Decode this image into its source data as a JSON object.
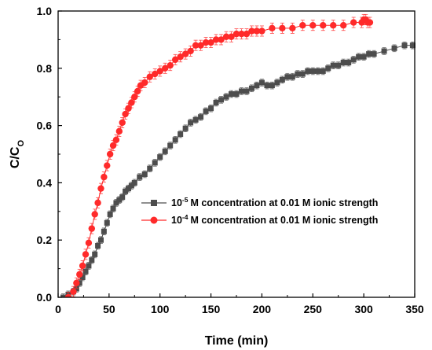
{
  "chart_data": {
    "type": "scatter",
    "xlabel": "Time (min)",
    "ylabel_main": "C/C",
    "ylabel_sub": "O",
    "xlim": [
      0,
      350
    ],
    "ylim": [
      0,
      1.0
    ],
    "xticks": [
      "0",
      "50",
      "100",
      "150",
      "200",
      "250",
      "300",
      "350"
    ],
    "yticks": [
      "0.0",
      "0.2",
      "0.4",
      "0.6",
      "0.8",
      "1.0"
    ],
    "grid": false,
    "legend_position": "center-right",
    "series": [
      {
        "base": "10",
        "exponent": "-5",
        "suffix": "M concentration at 0.01 M ionic strength",
        "color": "#4d4d4d",
        "marker": "square",
        "x": [
          5,
          10,
          15,
          18,
          21,
          24,
          27,
          30,
          33,
          36,
          39,
          42,
          45,
          48,
          51,
          54,
          57,
          60,
          63,
          66,
          69,
          72,
          75,
          80,
          85,
          90,
          95,
          100,
          105,
          110,
          115,
          120,
          125,
          130,
          135,
          140,
          145,
          150,
          155,
          160,
          165,
          170,
          175,
          180,
          185,
          190,
          195,
          200,
          205,
          210,
          215,
          220,
          225,
          230,
          235,
          240,
          245,
          250,
          255,
          260,
          265,
          270,
          275,
          280,
          285,
          290,
          295,
          300,
          305,
          310,
          320,
          330,
          340,
          348
        ],
        "y": [
          0.0,
          0.01,
          0.02,
          0.03,
          0.05,
          0.07,
          0.09,
          0.11,
          0.13,
          0.15,
          0.18,
          0.2,
          0.23,
          0.26,
          0.29,
          0.31,
          0.33,
          0.34,
          0.35,
          0.37,
          0.38,
          0.39,
          0.4,
          0.42,
          0.43,
          0.45,
          0.47,
          0.49,
          0.51,
          0.53,
          0.55,
          0.57,
          0.59,
          0.61,
          0.62,
          0.63,
          0.65,
          0.66,
          0.68,
          0.69,
          0.7,
          0.71,
          0.71,
          0.72,
          0.72,
          0.73,
          0.74,
          0.75,
          0.74,
          0.74,
          0.75,
          0.76,
          0.77,
          0.77,
          0.78,
          0.78,
          0.79,
          0.79,
          0.79,
          0.79,
          0.8,
          0.81,
          0.81,
          0.82,
          0.82,
          0.83,
          0.84,
          0.84,
          0.85,
          0.85,
          0.86,
          0.87,
          0.88,
          0.88
        ]
      },
      {
        "base": "10",
        "exponent": "-4",
        "suffix": "M concentration at 0.01 M ionic strength",
        "color": "#ff2a2a",
        "marker": "circle",
        "x": [
          10,
          15,
          18,
          21,
          24,
          27,
          30,
          33,
          36,
          39,
          42,
          45,
          48,
          51,
          54,
          57,
          60,
          63,
          66,
          69,
          72,
          75,
          78,
          81,
          85,
          90,
          95,
          100,
          105,
          110,
          115,
          120,
          125,
          130,
          135,
          140,
          145,
          150,
          155,
          160,
          165,
          170,
          175,
          180,
          185,
          190,
          195,
          200,
          210,
          220,
          230,
          240,
          250,
          260,
          270,
          280,
          290,
          298,
          300,
          302,
          304,
          306
        ],
        "y": [
          0.0,
          0.02,
          0.05,
          0.08,
          0.11,
          0.15,
          0.19,
          0.24,
          0.29,
          0.33,
          0.38,
          0.42,
          0.46,
          0.5,
          0.53,
          0.55,
          0.58,
          0.61,
          0.64,
          0.66,
          0.68,
          0.7,
          0.72,
          0.74,
          0.75,
          0.77,
          0.78,
          0.79,
          0.8,
          0.81,
          0.83,
          0.84,
          0.85,
          0.86,
          0.88,
          0.88,
          0.89,
          0.89,
          0.9,
          0.9,
          0.91,
          0.91,
          0.92,
          0.92,
          0.92,
          0.93,
          0.93,
          0.93,
          0.94,
          0.94,
          0.94,
          0.95,
          0.95,
          0.95,
          0.95,
          0.95,
          0.96,
          0.96,
          0.97,
          0.97,
          0.96,
          0.96
        ]
      }
    ]
  }
}
